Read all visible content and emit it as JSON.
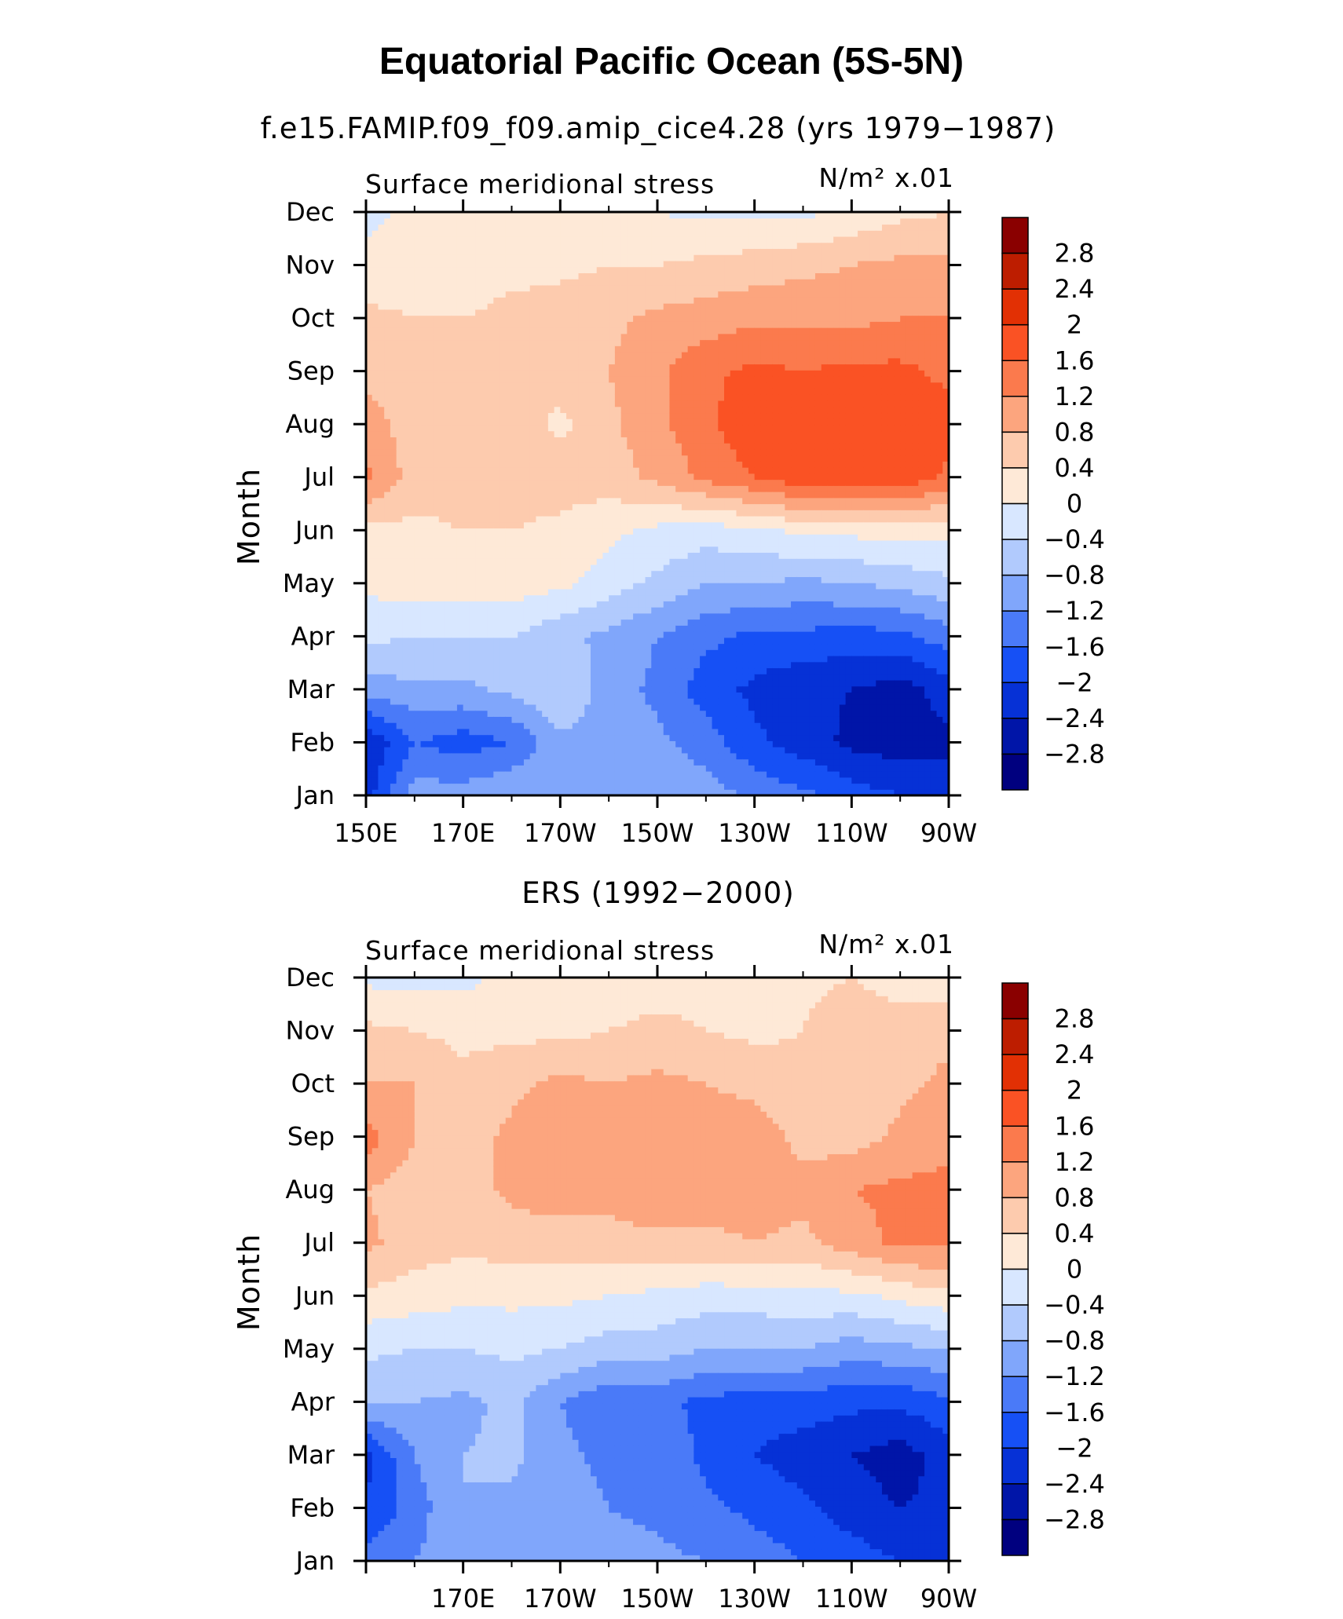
{
  "figure": {
    "title": "Equatorial Pacific Ocean (5S-5N)"
  },
  "colors": {
    "levels": [
      -2.8,
      -2.4,
      -2,
      -1.6,
      -1.2,
      -0.8,
      -0.4,
      0,
      0.4,
      0.8,
      1.2,
      1.6,
      2,
      2.4,
      2.8
    ],
    "palette": [
      "#00007f",
      "#0015a8",
      "#0631d6",
      "#1650f5",
      "#4a7af8",
      "#80a6fb",
      "#b1cafd",
      "#d8e7ff",
      "#fee9d7",
      "#fdcbae",
      "#fca57e",
      "#fb7a4d",
      "#fa5224",
      "#e23004",
      "#bd1d00",
      "#8a0000"
    ]
  },
  "chart_data": [
    {
      "type": "heatmap",
      "title": "f.e15.FAMIP.f09_f09.amip_cice4.28 (yrs 1979−1987)",
      "left_string": "Surface meridional stress",
      "right_string": "N/m² x.01",
      "ylabel": "Month",
      "xlabel": "",
      "x_ticks": [
        "150E",
        "170E",
        "170W",
        "150W",
        "130W",
        "110W",
        "90W"
      ],
      "y_ticks": [
        "Jan",
        "Feb",
        "Mar",
        "Apr",
        "May",
        "Jun",
        "Jul",
        "Aug",
        "Sep",
        "Oct",
        "Nov",
        "Dec"
      ],
      "colorbar_labels": [
        "2.8",
        "2.4",
        "2",
        "1.6",
        "1.2",
        "0.8",
        "0.4",
        "0",
        "−0.4",
        "−0.8",
        "−1.2",
        "−1.6",
        "−2",
        "−2.4",
        "−2.8"
      ],
      "x": [
        150,
        160,
        170,
        180,
        190,
        200,
        210,
        220,
        230,
        240,
        250,
        260,
        270
      ],
      "y": [
        "Jan",
        "Feb",
        "Mar",
        "Apr",
        "May",
        "Jun",
        "Jul",
        "Aug",
        "Sep",
        "Oct",
        "Nov",
        "Dec"
      ],
      "z": [
        [
          -2.2,
          -1.0,
          -1.0,
          -0.8,
          -0.8,
          -0.8,
          -0.9,
          -1.0,
          -1.3,
          -1.5,
          -1.8,
          -2.0,
          -2.2
        ],
        [
          -2.4,
          -1.6,
          -1.8,
          -1.6,
          -0.9,
          -1.0,
          -1.1,
          -1.4,
          -1.9,
          -2.2,
          -2.5,
          -2.6,
          -2.5
        ],
        [
          -1.0,
          -0.9,
          -0.9,
          -0.7,
          -0.4,
          -1.0,
          -1.3,
          -1.8,
          -2.1,
          -2.3,
          -2.4,
          -2.6,
          -2.2
        ],
        [
          -0.3,
          -0.4,
          -0.4,
          -0.4,
          -0.7,
          -0.9,
          -1.2,
          -1.5,
          -1.7,
          -1.7,
          -1.8,
          -1.7,
          -1.4
        ],
        [
          0.1,
          0.2,
          0.2,
          0.2,
          0.1,
          -0.2,
          -0.5,
          -0.8,
          -0.8,
          -0.9,
          -0.8,
          -0.7,
          -0.5
        ],
        [
          0.3,
          0.3,
          0.4,
          0.4,
          0.3,
          0.1,
          -0.1,
          -0.2,
          -0.1,
          0.1,
          0.1,
          0.2,
          0.1
        ],
        [
          1.3,
          0.6,
          0.6,
          0.6,
          0.6,
          0.6,
          0.9,
          1.3,
          1.6,
          1.9,
          1.9,
          1.9,
          1.5
        ],
        [
          1.0,
          0.6,
          0.6,
          0.6,
          0.3,
          0.7,
          1.1,
          1.5,
          1.9,
          1.9,
          1.7,
          1.7,
          1.8
        ],
        [
          0.7,
          0.5,
          0.4,
          0.5,
          0.6,
          0.8,
          1.1,
          1.5,
          1.7,
          1.6,
          1.7,
          1.7,
          1.5
        ],
        [
          0.5,
          0.4,
          0.4,
          0.5,
          0.6,
          0.7,
          0.9,
          1.0,
          1.1,
          1.1,
          1.1,
          1.2,
          1.2
        ],
        [
          0.1,
          0.2,
          0.2,
          0.3,
          0.3,
          0.4,
          0.4,
          0.5,
          0.6,
          0.7,
          0.8,
          0.9,
          0.9
        ],
        [
          -0.1,
          0.1,
          0.1,
          0.1,
          0.2,
          0.1,
          0.0,
          -0.1,
          -0.1,
          -0.1,
          0.1,
          0.3,
          0.4
        ]
      ]
    },
    {
      "type": "heatmap",
      "title": "ERS (1992−2000)",
      "left_string": "Surface meridional stress",
      "right_string": "N/m² x.01",
      "ylabel": "Month",
      "xlabel": "",
      "x_ticks": [
        "170E",
        "170W",
        "150W",
        "130W",
        "110W",
        "90W"
      ],
      "y_ticks": [
        "Jan",
        "Feb",
        "Mar",
        "Apr",
        "May",
        "Jun",
        "Jul",
        "Aug",
        "Sep",
        "Oct",
        "Nov",
        "Dec"
      ],
      "colorbar_labels": [
        "2.8",
        "2.4",
        "2",
        "1.6",
        "1.2",
        "0.8",
        "0.4",
        "0",
        "−0.4",
        "−0.8",
        "−1.2",
        "−1.6",
        "−2",
        "−2.4",
        "−2.8"
      ],
      "x": [
        150,
        160,
        170,
        180,
        190,
        200,
        210,
        220,
        230,
        240,
        250,
        260,
        270
      ],
      "y": [
        "Jan",
        "Feb",
        "Mar",
        "Apr",
        "May",
        "Jun",
        "Jul",
        "Aug",
        "Sep",
        "Oct",
        "Nov",
        "Dec"
      ],
      "z": [
        [
          -1.4,
          -1.2,
          -0.9,
          -0.8,
          -0.9,
          -1.0,
          -1.1,
          -1.2,
          -1.4,
          -1.6,
          -1.8,
          -2.0,
          -2.1
        ],
        [
          -2.0,
          -1.4,
          -0.8,
          -0.9,
          -1.0,
          -1.2,
          -1.3,
          -1.5,
          -1.7,
          -1.9,
          -2.2,
          -2.4,
          -2.3
        ],
        [
          -2.1,
          -1.2,
          -0.8,
          -0.7,
          -1.1,
          -1.3,
          -1.3,
          -1.7,
          -2.0,
          -2.2,
          -2.4,
          -2.6,
          -2.2
        ],
        [
          -0.8,
          -0.8,
          -0.9,
          -0.7,
          -1.2,
          -1.5,
          -1.5,
          -1.7,
          -1.8,
          -1.8,
          -1.9,
          -1.9,
          -1.7
        ],
        [
          -0.3,
          -0.4,
          -0.4,
          -0.3,
          -0.4,
          -0.6,
          -0.6,
          -0.8,
          -0.8,
          -0.8,
          -1.0,
          -0.9,
          -0.8
        ],
        [
          0.3,
          0.2,
          0.1,
          0.1,
          0.1,
          0.0,
          -0.1,
          -0.2,
          -0.2,
          -0.1,
          -0.1,
          0.1,
          0.3
        ],
        [
          0.9,
          0.6,
          0.5,
          0.6,
          0.6,
          0.6,
          0.7,
          0.7,
          0.8,
          0.7,
          1.0,
          1.3,
          1.3
        ],
        [
          0.8,
          0.6,
          0.6,
          0.9,
          1.0,
          1.0,
          1.1,
          1.0,
          1.0,
          0.9,
          1.2,
          1.3,
          1.3
        ],
        [
          1.4,
          0.8,
          0.6,
          0.9,
          1.0,
          1.0,
          0.9,
          1.0,
          1.0,
          0.7,
          0.6,
          0.9,
          1.1
        ],
        [
          0.8,
          0.8,
          0.5,
          0.7,
          0.9,
          0.8,
          0.9,
          0.8,
          0.7,
          0.5,
          0.5,
          0.7,
          0.9
        ],
        [
          0.5,
          0.4,
          0.3,
          0.3,
          0.3,
          0.4,
          0.5,
          0.4,
          0.3,
          0.4,
          0.7,
          0.6,
          0.7
        ],
        [
          -0.1,
          -0.1,
          -0.1,
          0.1,
          0.2,
          0.2,
          0.2,
          0.3,
          0.3,
          0.3,
          0.4,
          0.2,
          0.1
        ]
      ]
    }
  ]
}
